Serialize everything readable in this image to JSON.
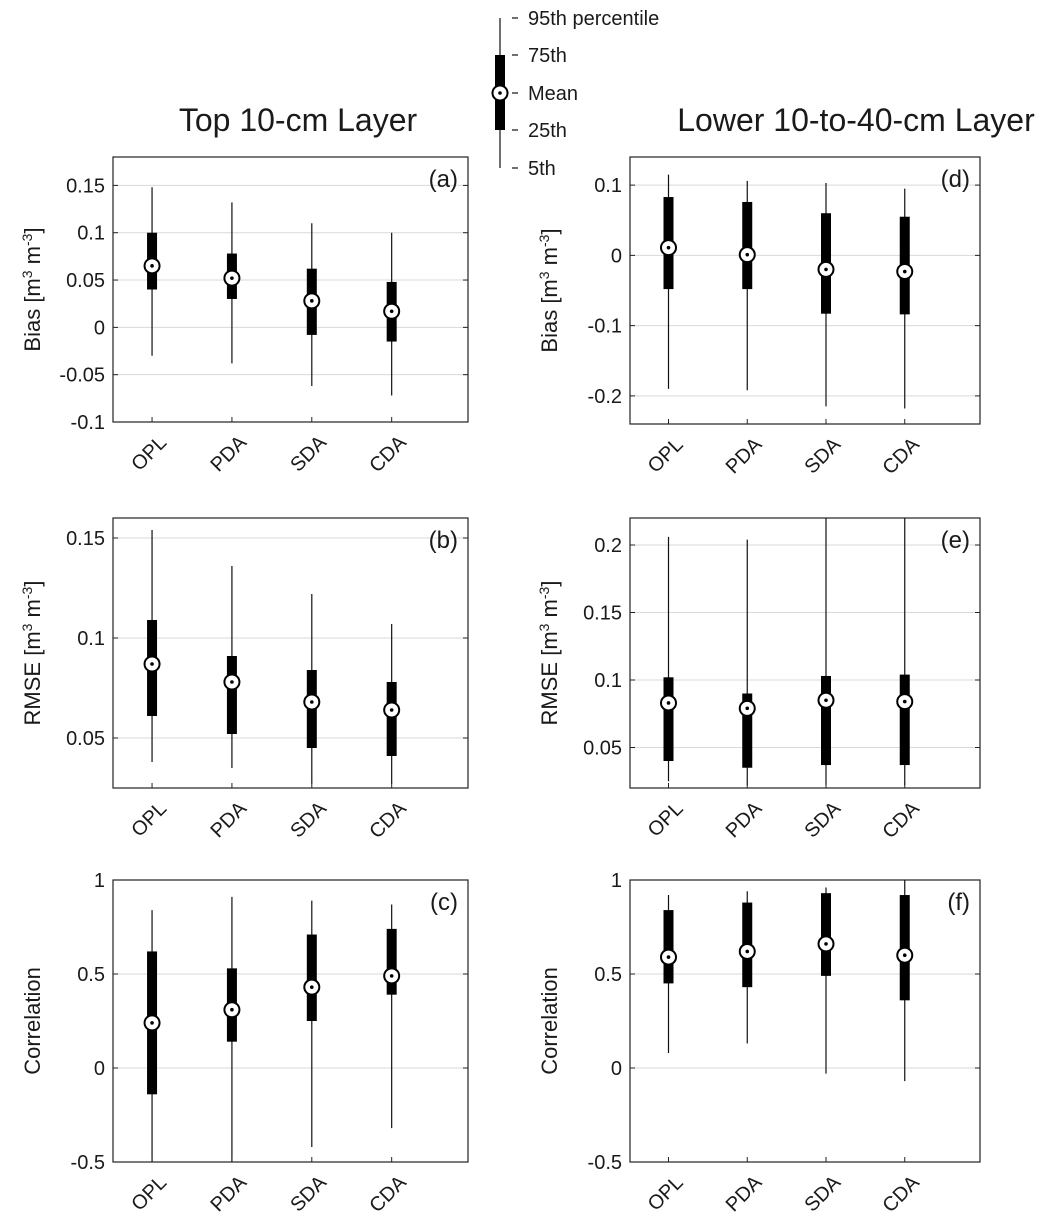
{
  "columns": {
    "left_title": "Top 10-cm Layer",
    "right_title": "Lower 10-to-40-cm Layer"
  },
  "legend": {
    "items": [
      "95th percentile",
      "75th",
      "Mean",
      "25th",
      "5th"
    ]
  },
  "chart_data": [
    {
      "type": "box",
      "panel_label": "(a)",
      "ylabel_main": "Bias [m",
      "ylabel_parts": [
        "Bias [m",
        "3",
        " m",
        "-3",
        "]"
      ],
      "categories": [
        "OPL",
        "PDA",
        "SDA",
        "CDA"
      ],
      "ylim": [
        -0.1,
        0.18
      ],
      "yticks": [
        -0.1,
        -0.05,
        0,
        0.05,
        0.1,
        0.15
      ],
      "ytick_labels": [
        "-0.1",
        "-0.05",
        "0",
        "0.05",
        "0.1",
        "0.15"
      ],
      "grid": true,
      "stats": [
        {
          "p5": -0.03,
          "p25": 0.04,
          "mean": 0.065,
          "p75": 0.1,
          "p95": 0.148
        },
        {
          "p5": -0.038,
          "p25": 0.03,
          "mean": 0.052,
          "p75": 0.078,
          "p95": 0.132
        },
        {
          "p5": -0.062,
          "p25": -0.008,
          "mean": 0.028,
          "p75": 0.062,
          "p95": 0.11
        },
        {
          "p5": -0.072,
          "p25": -0.015,
          "mean": 0.017,
          "p75": 0.048,
          "p95": 0.1
        }
      ]
    },
    {
      "type": "box",
      "panel_label": "(b)",
      "ylabel_parts": [
        "RMSE [m",
        "3",
        " m",
        "-3",
        "]"
      ],
      "categories": [
        "OPL",
        "PDA",
        "SDA",
        "CDA"
      ],
      "ylim": [
        0.025,
        0.16
      ],
      "yticks": [
        0.05,
        0.1,
        0.15
      ],
      "ytick_labels": [
        "0.05",
        "0.1",
        "0.15"
      ],
      "grid": true,
      "stats": [
        {
          "p5": 0.038,
          "p25": 0.061,
          "mean": 0.087,
          "p75": 0.109,
          "p95": 0.154
        },
        {
          "p5": 0.035,
          "p25": 0.052,
          "mean": 0.078,
          "p75": 0.091,
          "p95": 0.136
        },
        {
          "p5": 0.027,
          "p25": 0.045,
          "mean": 0.068,
          "p75": 0.084,
          "p95": 0.122
        },
        {
          "p5": 0.027,
          "p25": 0.041,
          "mean": 0.064,
          "p75": 0.078,
          "p95": 0.107
        }
      ]
    },
    {
      "type": "box",
      "panel_label": "(c)",
      "ylabel_parts": [
        "Correlation"
      ],
      "categories": [
        "OPL",
        "PDA",
        "SDA",
        "CDA"
      ],
      "ylim": [
        -0.5,
        1.0
      ],
      "yticks": [
        -0.5,
        0,
        0.5,
        1
      ],
      "ytick_labels": [
        "-0.5",
        "0",
        "0.5",
        "1"
      ],
      "grid": true,
      "stats": [
        {
          "p5": -0.5,
          "p25": -0.14,
          "mean": 0.24,
          "p75": 0.62,
          "p95": 0.84
        },
        {
          "p5": -0.5,
          "p25": 0.14,
          "mean": 0.31,
          "p75": 0.53,
          "p95": 0.91
        },
        {
          "p5": -0.42,
          "p25": 0.25,
          "mean": 0.43,
          "p75": 0.71,
          "p95": 0.89
        },
        {
          "p5": -0.32,
          "p25": 0.39,
          "mean": 0.49,
          "p75": 0.74,
          "p95": 0.87
        }
      ]
    },
    {
      "type": "box",
      "panel_label": "(d)",
      "ylabel_parts": [
        "Bias [m",
        "3",
        " m",
        "-3",
        "]"
      ],
      "categories": [
        "OPL",
        "PDA",
        "SDA",
        "CDA"
      ],
      "ylim": [
        -0.24,
        0.14
      ],
      "yticks": [
        -0.2,
        -0.1,
        0,
        0.1
      ],
      "ytick_labels": [
        "-0.2",
        "-0.1",
        "0",
        "0.1"
      ],
      "grid": true,
      "stats": [
        {
          "p5": -0.19,
          "p25": -0.048,
          "mean": 0.011,
          "p75": 0.083,
          "p95": 0.115
        },
        {
          "p5": -0.192,
          "p25": -0.048,
          "mean": 0.001,
          "p75": 0.076,
          "p95": 0.106
        },
        {
          "p5": -0.215,
          "p25": -0.083,
          "mean": -0.02,
          "p75": 0.06,
          "p95": 0.103
        },
        {
          "p5": -0.218,
          "p25": -0.084,
          "mean": -0.023,
          "p75": 0.055,
          "p95": 0.095
        }
      ]
    },
    {
      "type": "box",
      "panel_label": "(e)",
      "ylabel_parts": [
        "RMSE [m",
        "3",
        " m",
        "-3",
        "]"
      ],
      "categories": [
        "OPL",
        "PDA",
        "SDA",
        "CDA"
      ],
      "ylim": [
        0.02,
        0.22
      ],
      "yticks": [
        0.05,
        0.1,
        0.15,
        0.2
      ],
      "ytick_labels": [
        "0.05",
        "0.1",
        "0.15",
        "0.2"
      ],
      "grid": true,
      "stats": [
        {
          "p5": 0.025,
          "p25": 0.04,
          "mean": 0.083,
          "p75": 0.102,
          "p95": 0.206
        },
        {
          "p5": 0.022,
          "p25": 0.035,
          "mean": 0.079,
          "p75": 0.09,
          "p95": 0.204
        },
        {
          "p5": 0.022,
          "p25": 0.037,
          "mean": 0.085,
          "p75": 0.103,
          "p95": 0.22
        },
        {
          "p5": 0.022,
          "p25": 0.037,
          "mean": 0.084,
          "p75": 0.104,
          "p95": 0.22
        }
      ]
    },
    {
      "type": "box",
      "panel_label": "(f)",
      "ylabel_parts": [
        "Correlation"
      ],
      "categories": [
        "OPL",
        "PDA",
        "SDA",
        "CDA"
      ],
      "ylim": [
        -0.5,
        1.0
      ],
      "yticks": [
        -0.5,
        0,
        0.5,
        1
      ],
      "ytick_labels": [
        "-0.5",
        "0",
        "0.5",
        "1"
      ],
      "grid": true,
      "stats": [
        {
          "p5": 0.08,
          "p25": 0.45,
          "mean": 0.59,
          "p75": 0.84,
          "p95": 0.92
        },
        {
          "p5": 0.13,
          "p25": 0.43,
          "mean": 0.62,
          "p75": 0.88,
          "p95": 0.94
        },
        {
          "p5": -0.03,
          "p25": 0.49,
          "mean": 0.66,
          "p75": 0.93,
          "p95": 0.96
        },
        {
          "p5": -0.07,
          "p25": 0.36,
          "mean": 0.6,
          "p75": 0.92,
          "p95": 1.0
        }
      ]
    }
  ]
}
